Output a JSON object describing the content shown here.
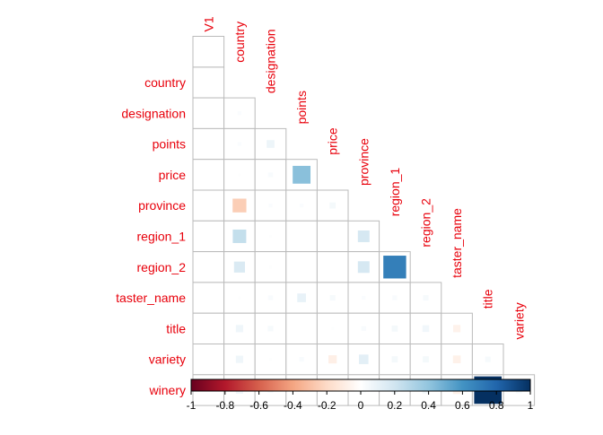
{
  "chart_data": {
    "type": "heatmap",
    "subtype": "correlation-lower-triangle",
    "title": "",
    "variables": [
      "V1",
      "country",
      "designation",
      "points",
      "price",
      "province",
      "region_1",
      "region_2",
      "taster_name",
      "title",
      "variety",
      "winery"
    ],
    "row_labels": [
      "country",
      "designation",
      "points",
      "price",
      "province",
      "region_1",
      "region_2",
      "taster_name",
      "title",
      "variety",
      "winery"
    ],
    "column_labels": [
      "V1",
      "country",
      "designation",
      "points",
      "price",
      "province",
      "region_1",
      "region_2",
      "taster_name",
      "title",
      "variety"
    ],
    "matrix": [
      [
        0.0
      ],
      [
        0.0,
        0.02
      ],
      [
        0.0,
        0.02,
        0.08
      ],
      [
        0.0,
        0.01,
        0.03,
        0.42
      ],
      [
        0.0,
        -0.25,
        0.02,
        0.02,
        0.05
      ],
      [
        0.0,
        0.24,
        0.01,
        0.0,
        0.0,
        0.18
      ],
      [
        0.0,
        0.16,
        0.01,
        0.0,
        0.0,
        0.18,
        0.69
      ],
      [
        0.0,
        0.01,
        0.03,
        0.1,
        0.04,
        0.02,
        0.03,
        0.04
      ],
      [
        0.0,
        0.07,
        0.04,
        0.0,
        0.01,
        0.03,
        0.05,
        0.06,
        -0.07
      ],
      [
        0.0,
        0.07,
        0.01,
        0.03,
        -0.09,
        0.12,
        0.05,
        0.05,
        -0.08,
        0.04
      ],
      [
        0.0,
        0.07,
        0.04,
        0.0,
        0.01,
        0.03,
        0.05,
        0.06,
        -0.08,
        1.0,
        0.05
      ]
    ],
    "colorbar": {
      "ticks": [
        -1,
        -0.8,
        -0.6,
        -0.4,
        -0.2,
        0,
        0.2,
        0.4,
        0.6,
        0.8,
        1
      ],
      "tick_labels": [
        "-1",
        "-0.8",
        "-0.6",
        "-0.4",
        "-0.2",
        "0",
        "0.2",
        "0.4",
        "0.6",
        "0.8",
        "1"
      ],
      "range": [
        -1,
        1
      ],
      "stops": [
        "#67001F",
        "#B2182B",
        "#D6604D",
        "#F4A582",
        "#FDDBC7",
        "#FFFFFF",
        "#D1E5F0",
        "#92C5DE",
        "#4393C3",
        "#2166AC",
        "#053061"
      ]
    },
    "label_color": "#E8000B",
    "grid_color": "#BBBBBB"
  }
}
